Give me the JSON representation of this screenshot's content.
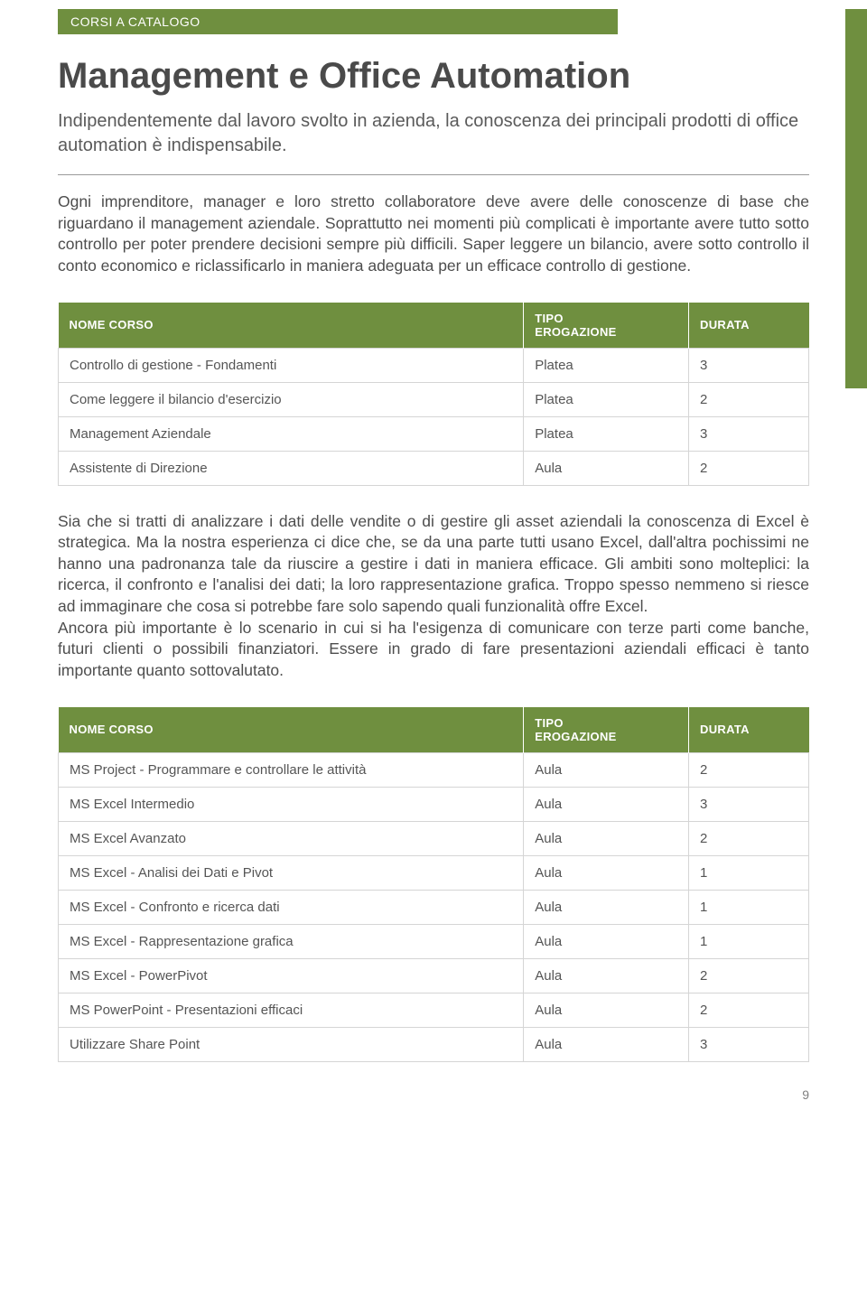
{
  "colors": {
    "accent": "#6f8f3f",
    "text": "#4a4a4a",
    "body": "#4d4d4d",
    "border": "#d5d5d5",
    "white": "#ffffff"
  },
  "badge": "CORSI A CATALOGO",
  "title": "Management e Office Automation",
  "intro": "Indipendentemente dal lavoro svolto in azienda, la conoscenza dei principali prodotti di office automation è indispensabile.",
  "para1": "Ogni imprenditore, manager e loro stretto collaboratore deve avere delle conoscenze di base che riguardano il management aziendale. Soprattutto nei momenti più complicati è importante avere tutto sotto controllo per poter prendere decisioni sempre più difficili. Saper leggere un bilancio, avere sotto controllo il conto economico e riclassificarlo in maniera adeguata per un efficace controllo di gestione.",
  "table_headers": {
    "name": "NOME CORSO",
    "tipo_line1": "TIPO",
    "tipo_line2": "EROGAZIONE",
    "durata": "DURATA"
  },
  "table1": {
    "rows": [
      {
        "name": "Controllo di gestione - Fondamenti",
        "tipo": "Platea",
        "durata": "3"
      },
      {
        "name": "Come leggere il bilancio d'esercizio",
        "tipo": "Platea",
        "durata": "2"
      },
      {
        "name": "Management Aziendale",
        "tipo": "Platea",
        "durata": "3"
      },
      {
        "name": "Assistente di Direzione",
        "tipo": "Aula",
        "durata": "2"
      }
    ]
  },
  "para2": "Sia che si tratti di analizzare i dati delle vendite o di gestire gli asset aziendali la conoscenza di Excel è strategica. Ma la nostra esperienza ci dice che, se da una parte tutti usano Excel, dall'altra pochissimi ne hanno una padronanza tale da riuscire a gestire i dati in maniera efficace. Gli ambiti sono molteplici: la ricerca, il confronto e l'analisi dei dati; la loro rappresentazione grafica. Troppo spesso nemmeno si riesce ad immaginare che cosa si potrebbe fare solo sapendo quali funzionalità offre Excel.\nAncora più importante è lo scenario in cui si ha l'esigenza di comunicare con terze parti come banche, futuri clienti o possibili finanziatori. Essere in grado di fare presentazioni aziendali efficaci è tanto importante quanto sottovalutato.",
  "table2": {
    "rows": [
      {
        "name": "MS Project - Programmare e controllare le attività",
        "tipo": "Aula",
        "durata": "2"
      },
      {
        "name": "MS Excel Intermedio",
        "tipo": "Aula",
        "durata": "3"
      },
      {
        "name": "MS Excel Avanzato",
        "tipo": "Aula",
        "durata": "2"
      },
      {
        "name": "MS Excel - Analisi dei Dati e Pivot",
        "tipo": "Aula",
        "durata": "1"
      },
      {
        "name": "MS Excel - Confronto e ricerca dati",
        "tipo": "Aula",
        "durata": "1"
      },
      {
        "name": "MS Excel - Rappresentazione grafica",
        "tipo": "Aula",
        "durata": "1"
      },
      {
        "name": "MS Excel - PowerPivot",
        "tipo": "Aula",
        "durata": "2"
      },
      {
        "name": "MS PowerPoint - Presentazioni efficaci",
        "tipo": "Aula",
        "durata": "2"
      },
      {
        "name": "Utilizzare Share Point",
        "tipo": "Aula",
        "durata": "3"
      }
    ]
  },
  "page_number": "9"
}
